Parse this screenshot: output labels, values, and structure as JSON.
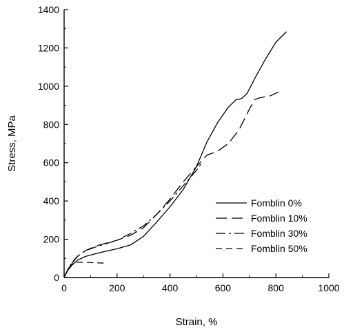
{
  "chart_data": {
    "type": "line",
    "title": "",
    "xlabel": "Strain, %",
    "ylabel": "Stress, MPa",
    "xlim": [
      0,
      1000
    ],
    "ylim": [
      0,
      1400
    ],
    "xticks": [
      "0",
      "200",
      "400",
      "600",
      "800",
      "1000"
    ],
    "yticks": [
      "0",
      "200",
      "400",
      "600",
      "800",
      "1000",
      "1200",
      "1400"
    ],
    "grid": false,
    "legend_position": "lower-right",
    "series": [
      {
        "name": "Fomblin 0%",
        "dash": "solid",
        "x": [
          0,
          15,
          30,
          50,
          80,
          120,
          160,
          200,
          250,
          300,
          350,
          400,
          450,
          500,
          540,
          580,
          620,
          650,
          670,
          690,
          720,
          760,
          800,
          840
        ],
        "y": [
          0,
          40,
          65,
          90,
          110,
          125,
          138,
          150,
          170,
          215,
          290,
          370,
          460,
          580,
          710,
          810,
          890,
          930,
          935,
          960,
          1040,
          1140,
          1230,
          1285
        ]
      },
      {
        "name": "Fomblin 10%",
        "dash": "long",
        "x": [
          0,
          15,
          30,
          50,
          80,
          120,
          160,
          200,
          250,
          300,
          350,
          400,
          450,
          500,
          540,
          580,
          620,
          660,
          700,
          720,
          740,
          780,
          810
        ],
        "y": [
          0,
          45,
          75,
          110,
          140,
          165,
          180,
          195,
          220,
          260,
          330,
          410,
          500,
          580,
          640,
          660,
          700,
          770,
          880,
          930,
          940,
          950,
          970
        ]
      },
      {
        "name": "Fomblin 30%",
        "dash": "dashdot",
        "x": [
          0,
          15,
          30,
          50,
          80,
          120,
          160,
          200,
          250,
          300,
          350,
          400,
          450,
          500,
          520
        ],
        "y": [
          0,
          45,
          80,
          110,
          140,
          160,
          178,
          195,
          230,
          270,
          330,
          400,
          480,
          560,
          600
        ]
      },
      {
        "name": "Fomblin 50%",
        "dash": "short",
        "x": [
          0,
          15,
          30,
          50,
          80,
          120,
          160
        ],
        "y": [
          0,
          45,
          70,
          80,
          80,
          77,
          75
        ]
      }
    ]
  }
}
